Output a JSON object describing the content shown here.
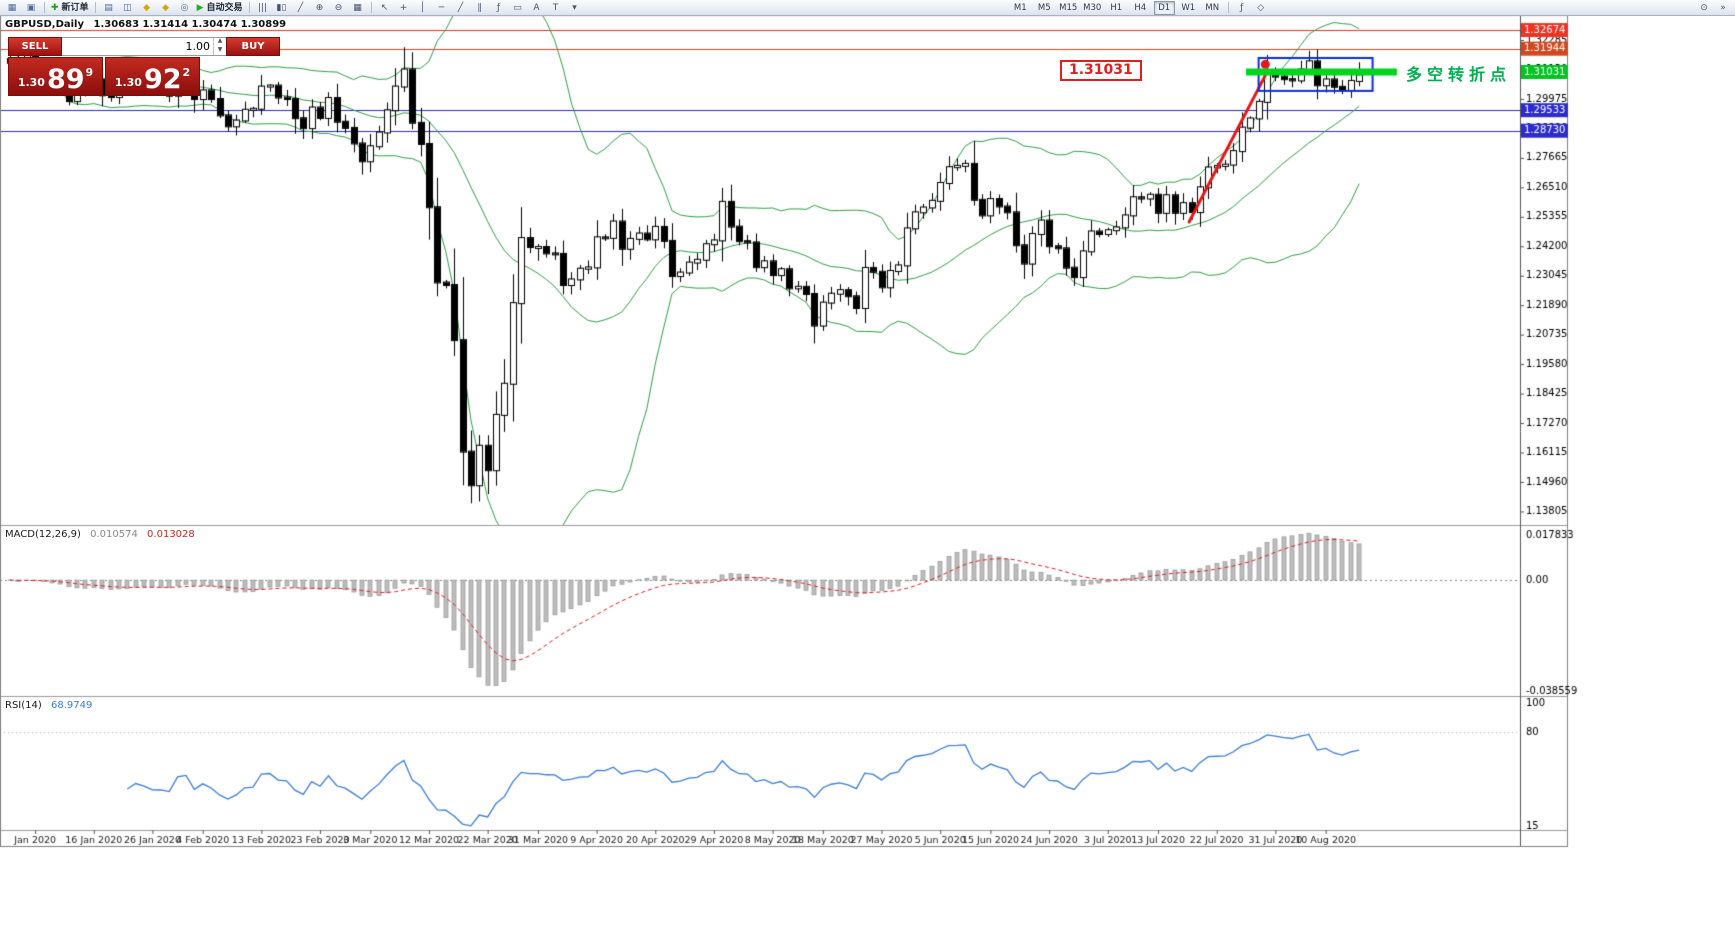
{
  "toolbar": {
    "file_icons": [
      {
        "name": "new-chart-icon",
        "glyph": "▦",
        "color": "#4a6a9a"
      },
      {
        "name": "chart-profiles-icon",
        "glyph": "▣",
        "color": "#4a6a9a"
      }
    ],
    "new_order": {
      "name": "new-order-button",
      "glyph": "✚",
      "glyph_color": "#18a018",
      "label": "新订单"
    },
    "panel_icons": [
      {
        "name": "market-watch-icon",
        "glyph": "▤",
        "color": "#4a6a9a"
      },
      {
        "name": "data-window-icon",
        "glyph": "◫",
        "color": "#4a6a9a"
      },
      {
        "name": "navigator-icon",
        "glyph": "◆",
        "color": "#d7a500"
      },
      {
        "name": "terminal-icon",
        "glyph": "◆",
        "color": "#d7a500"
      },
      {
        "name": "strategy-tester-icon",
        "glyph": "◎",
        "color": "#4a6a9a"
      }
    ],
    "autotrading": {
      "name": "autotrading-button",
      "glyph": "▶",
      "glyph_color": "#1db31d",
      "label": "自动交易"
    },
    "chart_icons": [
      {
        "name": "bars-chart-type-icon",
        "glyph": "|||"
      },
      {
        "name": "candles-chart-type-icon",
        "glyph": "▮▯"
      },
      {
        "name": "line-chart-type-icon",
        "glyph": "╱"
      },
      {
        "name": "zoom-in-icon",
        "glyph": "⊕"
      },
      {
        "name": "zoom-out-icon",
        "glyph": "⊖"
      },
      {
        "name": "tile-windows-icon",
        "glyph": "▦"
      }
    ],
    "tool_icons": [
      {
        "name": "cursor-icon",
        "glyph": "↖"
      },
      {
        "name": "crosshair-icon",
        "glyph": "+"
      },
      {
        "name": "vertical-line-icon",
        "glyph": "│"
      },
      {
        "name": "horizontal-line-icon",
        "glyph": "─"
      },
      {
        "name": "trendline-icon",
        "glyph": "╱"
      },
      {
        "name": "channel-icon",
        "glyph": "∥"
      },
      {
        "name": "fibonacci-icon",
        "glyph": "ƒ"
      },
      {
        "name": "shapes-icon",
        "glyph": "▭"
      },
      {
        "name": "text-icon",
        "glyph": "A"
      },
      {
        "name": "text-label-icon",
        "glyph": "T"
      },
      {
        "name": "arrows-dropdown-icon",
        "glyph": "▾"
      }
    ],
    "timeframes": [
      "M1",
      "M5",
      "M15",
      "M30",
      "H1",
      "H4",
      "D1",
      "W1",
      "MN"
    ],
    "active_timeframe": "D1",
    "post_icons": [
      {
        "name": "indicators-icon",
        "glyph": "ƒ"
      },
      {
        "name": "objects-list-icon",
        "glyph": "◇"
      }
    ],
    "right_icons": [
      {
        "name": "zoom-search-icon",
        "glyph": "⊙"
      },
      {
        "name": "collapse-toolbar-icon",
        "glyph": "»"
      }
    ]
  },
  "chart_header": {
    "symbol_period": "GBPUSD,Daily",
    "ohlc": "1.30683 1.31414 1.30474 1.30899"
  },
  "quote_panel": {
    "sell_label": "SELL",
    "buy_label": "BUY",
    "volume": "1.00",
    "sell_small": "1.30",
    "sell_big": "89",
    "sell_sup": "9",
    "buy_small": "1.30",
    "buy_big": "92",
    "buy_sup": "2"
  },
  "macd_panel": {
    "label": "MACD(12,26,9)",
    "value1": "0.010574",
    "value2": "0.013028"
  },
  "rsi_panel": {
    "label": "RSI(14)",
    "value": "68.9749"
  },
  "annotations": {
    "price_flag": "1.31031",
    "turning_point": "多空转折点"
  },
  "chart_data": {
    "type": "candlestick",
    "symbol": "GBPUSD",
    "period": "Daily",
    "title": "GBPUSD,Daily",
    "current_ohlc": {
      "open": 1.30683,
      "high": 1.31414,
      "low": 1.30474,
      "close": 1.30899
    },
    "closes": [
      1.3139,
      1.3083,
      1.3166,
      1.3123,
      1.3103,
      1.3066,
      1.3062,
      1.2989,
      1.3021,
      1.304,
      1.3074,
      1.3012,
      1.3005,
      1.3049,
      1.304,
      1.3073,
      1.3053,
      1.3023,
      1.3022,
      1.301,
      1.3091,
      1.31,
      1.2997,
      1.3031,
      1.2997,
      1.2933,
      1.289,
      1.2913,
      1.2955,
      1.2959,
      1.3046,
      1.305,
      1.3003,
      1.2997,
      1.2922,
      1.2883,
      1.2964,
      1.2923,
      1.3001,
      1.2908,
      1.2884,
      1.2823,
      1.2753,
      1.2812,
      1.2866,
      1.2953,
      1.3046,
      1.3113,
      1.2904,
      1.2821,
      1.2573,
      1.2278,
      1.2268,
      1.2052,
      1.1615,
      1.1483,
      1.1638,
      1.1542,
      1.1759,
      1.1881,
      1.2197,
      1.2452,
      1.2417,
      1.2417,
      1.2392,
      1.239,
      1.2268,
      1.229,
      1.2332,
      1.2337,
      1.2455,
      1.2453,
      1.2517,
      1.241,
      1.2449,
      1.247,
      1.2447,
      1.2496,
      1.2441,
      1.2303,
      1.2317,
      1.2356,
      1.2367,
      1.2428,
      1.2443,
      1.2594,
      1.2497,
      1.244,
      1.2435,
      1.2338,
      1.2361,
      1.2307,
      1.233,
      1.2255,
      1.2261,
      1.2233,
      1.2109,
      1.2199,
      1.2234,
      1.2248,
      1.2224,
      1.2178,
      1.2335,
      1.232,
      1.2259,
      1.2323,
      1.2345,
      1.249,
      1.2553,
      1.2572,
      1.2598,
      1.2668,
      1.273,
      1.2735,
      1.2743,
      1.2602,
      1.2541,
      1.2605,
      1.2576,
      1.2553,
      1.2424,
      1.2352,
      1.2468,
      1.2521,
      1.242,
      1.2412,
      1.2336,
      1.2299,
      1.24,
      1.2478,
      1.2468,
      1.2483,
      1.2494,
      1.2541,
      1.2612,
      1.2607,
      1.2622,
      1.2551,
      1.262,
      1.2551,
      1.2589,
      1.2554,
      1.2651,
      1.2729,
      1.2735,
      1.274,
      1.2793,
      1.2885,
      1.2921,
      1.2986,
      1.3093,
      1.3085,
      1.3075,
      1.307,
      1.3113,
      1.3145,
      1.3051,
      1.3074,
      1.3045,
      1.3032,
      1.3068,
      1.309
    ],
    "wick_overrides": {
      "47": [
        1.32,
        null
      ],
      "55": [
        null,
        1.1412
      ],
      "150": [
        1.317,
        null
      ],
      "155": [
        1.3186,
        null
      ],
      "161": [
        1.31414,
        1.30474
      ]
    },
    "x_labels": [
      {
        "i": 3,
        "t": "Jan 2020"
      },
      {
        "i": 10,
        "t": "16 Jan 2020"
      },
      {
        "i": 17,
        "t": "26 Jan 2020"
      },
      {
        "i": 23,
        "t": "4 Feb 2020"
      },
      {
        "i": 30,
        "t": "13 Feb 2020"
      },
      {
        "i": 37,
        "t": "23 Feb 2020"
      },
      {
        "i": 43,
        "t": "3 Mar 2020"
      },
      {
        "i": 50,
        "t": "12 Mar 2020"
      },
      {
        "i": 57,
        "t": "22 Mar 2020"
      },
      {
        "i": 63,
        "t": "31 Mar 2020"
      },
      {
        "i": 70,
        "t": "9 Apr 2020"
      },
      {
        "i": 77,
        "t": "20 Apr 2020"
      },
      {
        "i": 84,
        "t": "29 Apr 2020"
      },
      {
        "i": 91,
        "t": "8 May 2020"
      },
      {
        "i": 97,
        "t": "18 May 2020"
      },
      {
        "i": 104,
        "t": "27 May 2020"
      },
      {
        "i": 111,
        "t": "5 Jun 2020"
      },
      {
        "i": 117,
        "t": "15 Jun 2020"
      },
      {
        "i": 124,
        "t": "24 Jun 2020"
      },
      {
        "i": 131,
        "t": "3 Jul 2020"
      },
      {
        "i": 137,
        "t": "13 Jul 2020"
      },
      {
        "i": 144,
        "t": "22 Jul 2020"
      },
      {
        "i": 151,
        "t": "31 Jul 2020"
      },
      {
        "i": 157,
        "t": "10 Aug 2020"
      }
    ],
    "price_axis": {
      "ticks": [
        "1.32285",
        "1.31130",
        "1.29975",
        "1.28820",
        "1.27665",
        "1.26510",
        "1.25355",
        "1.24200",
        "1.23045",
        "1.21890",
        "1.20735",
        "1.19580",
        "1.18425",
        "1.17270",
        "1.16115",
        "1.14960",
        "1.13805"
      ],
      "special": [
        {
          "price": 1.32674,
          "label": "1.32674",
          "color": "#ee3322"
        },
        {
          "price": 1.31944,
          "label": "1.31944",
          "color": "#d2481e"
        },
        {
          "price": 1.31031,
          "label": "1.31031",
          "color": "#00c422"
        },
        {
          "price": 1.29533,
          "label": "1.29533",
          "color": "#2b2bd0"
        },
        {
          "price": 1.2873,
          "label": "1.28730",
          "color": "#2b2bd0"
        }
      ]
    },
    "hlines": [
      {
        "price": 1.32674,
        "color": "#ee3322",
        "width": 1
      },
      {
        "price": 1.31944,
        "color": "#d2481e",
        "width": 1
      },
      {
        "price": 1.29533,
        "color": "#2b2bd0",
        "width": 1
      },
      {
        "price": 1.2873,
        "color": "#2b2bd0",
        "width": 1
      }
    ],
    "green_band": {
      "price": 1.31031,
      "bar1": 147.5,
      "bar2": 165.5,
      "color": "#00d41c",
      "thickness": 7
    },
    "blue_box": {
      "bar1": 149,
      "bar2": 162.6,
      "p_top": 1.3158,
      "p_bottom": 1.3029,
      "color": "#0a2fd4",
      "width": 2
    },
    "trend_line": {
      "bar1": 140.7,
      "p1": 1.2515,
      "bar2": 149.8,
      "p2": 1.309,
      "color": "#e01818",
      "width": 3
    },
    "red_dot": {
      "bar": 149.8,
      "price": 1.3133,
      "color": "#e01818",
      "r": 4.5
    },
    "bollinger": {
      "period": 20,
      "deviation": 2,
      "color": "#2f9e44"
    },
    "macd": {
      "fast": 12,
      "slow": 26,
      "signal": 9,
      "value": 0.010574,
      "signal_value": 0.013028,
      "axis_labels": [
        "0.017833",
        "0.00",
        "-0.038559"
      ],
      "range": [
        -0.038559,
        0.017833
      ],
      "histogram_color": "#bdbdbd",
      "signal_color": "#e02020"
    },
    "rsi": {
      "period": 14,
      "value": 68.9749,
      "axis_labels": [
        "100",
        "80",
        "15"
      ],
      "range": [
        15,
        100
      ],
      "levels": [
        80
      ],
      "color": "#3b7dd8"
    },
    "ylim": [
      1.13313,
      1.33226
    ],
    "grid": false,
    "legend_position": "none"
  }
}
